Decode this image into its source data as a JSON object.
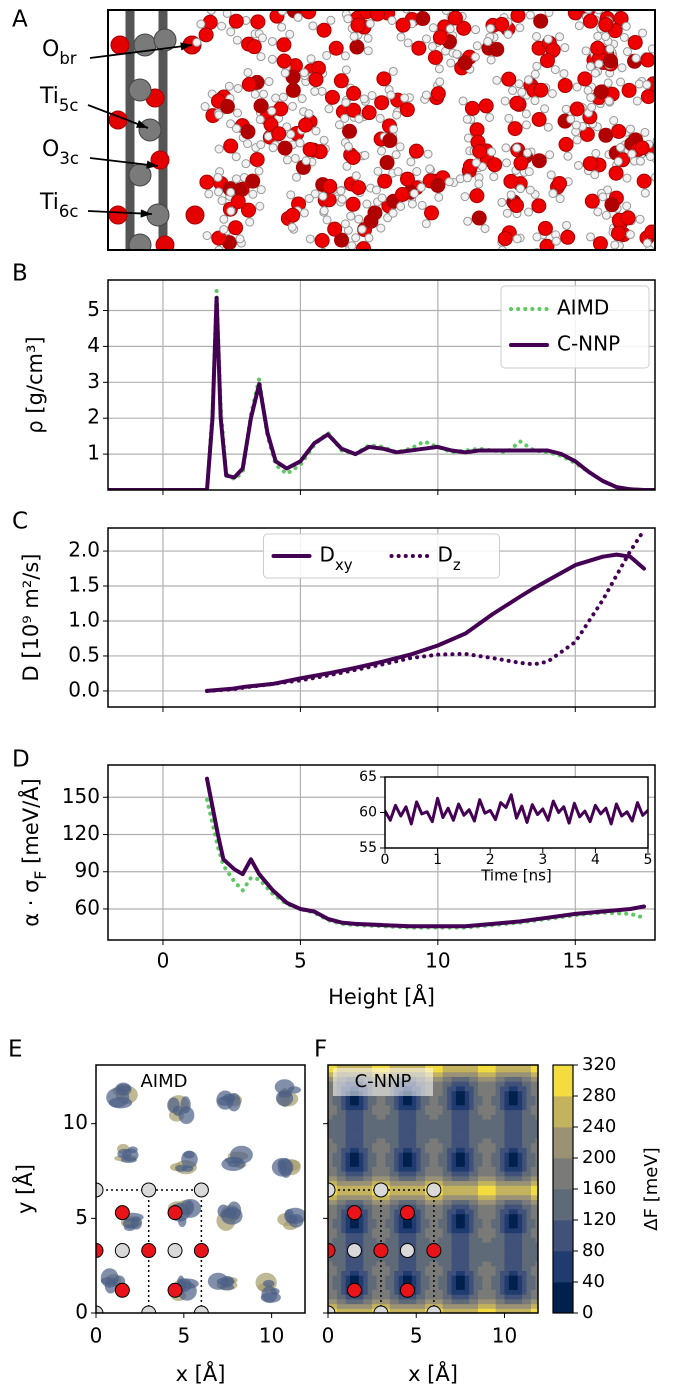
{
  "chart_data": [
    {
      "type": "snapshot",
      "panel": "A",
      "annotations": [
        "Obr",
        "Ti5c",
        "O3c",
        "Ti6c"
      ]
    },
    {
      "type": "line",
      "panel": "B",
      "ylabel": "ρ [g/cm³]",
      "x": [
        -2,
        1.6,
        1.8,
        1.95,
        2.1,
        2.3,
        2.6,
        2.9,
        3.2,
        3.5,
        3.8,
        4.1,
        4.5,
        5,
        5.5,
        6,
        6.5,
        7,
        7.5,
        8,
        8.5,
        9,
        9.5,
        10,
        10.5,
        11,
        11.5,
        12,
        12.5,
        13,
        13.5,
        14,
        14.5,
        15,
        15.5,
        16,
        16.5,
        17,
        17.5,
        17.9
      ],
      "series": [
        {
          "name": "AIMD",
          "color": "#5ec962",
          "linestyle": "dotted",
          "values": [
            0,
            0,
            2.2,
            5.55,
            2.3,
            0.45,
            0.3,
            0.5,
            2.1,
            3.1,
            1.5,
            0.7,
            0.45,
            0.7,
            1.25,
            1.6,
            1.1,
            1.0,
            1.25,
            1.2,
            1.05,
            1.15,
            1.35,
            1.2,
            1.05,
            1.1,
            1.15,
            1.1,
            1.05,
            1.35,
            1.1,
            1.05,
            0.95,
            0.75,
            0.5,
            0.25,
            0.08,
            0.02,
            0,
            0
          ]
        },
        {
          "name": "C-NNP",
          "color": "#440154",
          "linestyle": "solid",
          "values": [
            0,
            0,
            2.0,
            5.35,
            2.0,
            0.4,
            0.35,
            0.6,
            2.0,
            2.95,
            1.6,
            0.8,
            0.6,
            0.8,
            1.3,
            1.55,
            1.15,
            1.0,
            1.2,
            1.15,
            1.05,
            1.1,
            1.15,
            1.2,
            1.1,
            1.05,
            1.1,
            1.1,
            1.1,
            1.1,
            1.1,
            1.1,
            1.0,
            0.8,
            0.5,
            0.25,
            0.08,
            0.02,
            0,
            0
          ]
        }
      ],
      "xlim": [
        -2,
        17.9
      ],
      "ylim": [
        0,
        5.85
      ],
      "xticks": [
        0,
        5,
        10,
        15
      ],
      "yticks": [
        1,
        2,
        3,
        4,
        5
      ],
      "grid": true,
      "legend": "upper right"
    },
    {
      "type": "line",
      "panel": "C",
      "ylabel": "D [10⁹ m²/s]",
      "x": [
        1.6,
        2.5,
        3,
        4,
        5,
        6,
        7,
        8,
        9,
        10,
        11,
        12,
        13,
        13.5,
        14,
        15,
        16,
        16.5,
        17,
        17.5
      ],
      "series": [
        {
          "name": "Dxy",
          "color": "#440154",
          "linestyle": "solid",
          "values": [
            0,
            0.03,
            0.06,
            0.1,
            0.18,
            0.25,
            0.33,
            0.42,
            0.52,
            0.65,
            0.82,
            1.1,
            1.35,
            1.47,
            1.58,
            1.8,
            1.92,
            1.95,
            1.92,
            1.75
          ]
        },
        {
          "name": "Dz",
          "color": "#440154",
          "linestyle": "dotted",
          "values": [
            0,
            0.02,
            0.05,
            0.1,
            0.15,
            0.22,
            0.3,
            0.38,
            0.47,
            0.52,
            0.53,
            0.47,
            0.4,
            0.38,
            0.42,
            0.7,
            1.3,
            1.65,
            2.0,
            2.3
          ]
        }
      ],
      "xlim": [
        -2,
        17.9
      ],
      "ylim": [
        -0.23,
        2.33
      ],
      "xticks": [
        0,
        5,
        10,
        15
      ],
      "yticks": [
        {
          "value": 0,
          "label": "0.0"
        },
        0.5,
        {
          "value": 1,
          "label": "1.0"
        },
        1.5,
        {
          "value": 2,
          "label": "2.0"
        }
      ],
      "grid": true,
      "legend": "upper center"
    },
    {
      "type": "line",
      "panel": "D",
      "ylabel": "α · σF [meV/Å]",
      "xlabel": "Height [Å]",
      "x": [
        1.6,
        2.0,
        2.2,
        2.6,
        2.9,
        3.2,
        3.5,
        4.0,
        4.5,
        5,
        5.5,
        6,
        6.5,
        7,
        8,
        9,
        10,
        11,
        12,
        13,
        14,
        15,
        16,
        17,
        17.5
      ],
      "series": [
        {
          "name": "AIMD",
          "color": "#5ec962",
          "linestyle": "dotted",
          "values": [
            148,
            110,
            95,
            82,
            75,
            85,
            84,
            72,
            64,
            60,
            57,
            51,
            48,
            47,
            46,
            45,
            45,
            45,
            47,
            49,
            52,
            55,
            57,
            56,
            53
          ]
        },
        {
          "name": "C-NNP",
          "color": "#440154",
          "linestyle": "solid",
          "values": [
            165,
            120,
            100,
            92,
            88,
            100,
            88,
            75,
            65,
            60,
            58,
            52,
            49,
            48,
            47,
            46,
            46,
            46,
            48,
            50,
            53,
            56,
            58,
            60,
            62
          ]
        }
      ],
      "xlim": [
        -2,
        17.9
      ],
      "ylim": [
        35,
        176
      ],
      "xticks": [
        0,
        5,
        10,
        15
      ],
      "yticks": [
        60,
        90,
        120,
        150
      ],
      "grid": true,
      "inset": {
        "type": "line",
        "xlabel": "Time [ns]",
        "x": [
          0,
          0.1,
          0.2,
          0.3,
          0.4,
          0.5,
          0.6,
          0.7,
          0.8,
          0.9,
          1.0,
          1.1,
          1.2,
          1.3,
          1.4,
          1.5,
          1.6,
          1.7,
          1.8,
          1.9,
          2.0,
          2.1,
          2.2,
          2.3,
          2.4,
          2.5,
          2.6,
          2.7,
          2.8,
          2.9,
          3.0,
          3.1,
          3.2,
          3.3,
          3.4,
          3.5,
          3.6,
          3.7,
          3.8,
          3.9,
          4.0,
          4.1,
          4.2,
          4.3,
          4.4,
          4.5,
          4.6,
          4.7,
          4.8,
          4.9,
          5.0
        ],
        "series": [
          {
            "color": "#440154",
            "linestyle": "solid",
            "values": [
              60.2,
              58.9,
              61.0,
              59.5,
              60.8,
              58.4,
              61.5,
              59.8,
              60.1,
              58.7,
              62.0,
              59.3,
              60.6,
              58.9,
              61.2,
              59.6,
              60.4,
              58.8,
              61.8,
              59.9,
              60.3,
              59.0,
              61.4,
              60.7,
              62.5,
              59.2,
              60.9,
              58.6,
              61.1,
              59.7,
              60.5,
              58.9,
              61.6,
              60.0,
              60.8,
              58.5,
              61.3,
              59.4,
              60.2,
              58.7,
              61.0,
              59.8,
              60.6,
              58.4,
              61.2,
              59.5,
              60.1,
              58.8,
              61.4,
              59.6,
              60.3
            ]
          }
        ],
        "xlim": [
          0,
          5
        ],
        "ylim": [
          55,
          65
        ],
        "xticks": [
          0,
          1,
          2,
          3,
          4,
          5
        ],
        "yticks": [
          55,
          60,
          65
        ],
        "grid": false
      }
    },
    {
      "type": "map",
      "panel": "E",
      "title": "AIMD",
      "xlabel": "x [Å]",
      "ylabel": "y [Å]",
      "xlim": [
        0,
        11.9
      ],
      "ylim": [
        0,
        13.1
      ],
      "xticks": [
        0,
        5,
        10
      ],
      "yticks": [
        0,
        5,
        10
      ],
      "atoms": [
        {
          "color": "#d9d9d9",
          "positions": [
            [
              0,
              6.5
            ],
            [
              3,
              6.5
            ],
            [
              6,
              6.5
            ],
            [
              1.5,
              3.3
            ],
            [
              4.5,
              3.3
            ],
            [
              0,
              0
            ],
            [
              3,
              0
            ],
            [
              6,
              0
            ]
          ]
        },
        {
          "color": "#e8141a",
          "positions": [
            [
              1.5,
              5.3
            ],
            [
              4.5,
              5.3
            ],
            [
              0,
              3.3
            ],
            [
              3,
              3.3
            ],
            [
              6,
              3.3
            ],
            [
              1.5,
              1.2
            ],
            [
              4.5,
              1.2
            ]
          ]
        }
      ]
    },
    {
      "type": "map",
      "panel": "F",
      "title": "C-NNP",
      "xlabel": "x [Å]",
      "xlim": [
        0,
        11.9
      ],
      "ylim": [
        0,
        13.1
      ],
      "xticks": [
        0,
        5,
        10
      ],
      "yticks": [
        0,
        5,
        10
      ],
      "atoms": [
        {
          "color": "#d9d9d9",
          "positions": [
            [
              0,
              6.5
            ],
            [
              3,
              6.5
            ],
            [
              6,
              6.5
            ],
            [
              1.5,
              3.3
            ],
            [
              4.5,
              3.3
            ],
            [
              0,
              0
            ],
            [
              3,
              0
            ],
            [
              6,
              0
            ]
          ]
        },
        {
          "color": "#e8141a",
          "positions": [
            [
              1.5,
              5.3
            ],
            [
              4.5,
              5.3
            ],
            [
              0,
              3.3
            ],
            [
              3,
              3.3
            ],
            [
              6,
              3.3
            ],
            [
              1.5,
              1.2
            ],
            [
              4.5,
              1.2
            ]
          ]
        }
      ],
      "colorbar": {
        "label": "ΔF [meV]",
        "lim": [
          0,
          320
        ],
        "ticks": [
          0,
          40,
          80,
          120,
          160,
          200,
          240,
          280,
          320
        ],
        "colors": [
          "#00204d",
          "#1f3b6f",
          "#40517a",
          "#5f6a78",
          "#7a7b78",
          "#9a9274",
          "#c4b35e",
          "#f3dc3f"
        ]
      }
    }
  ]
}
